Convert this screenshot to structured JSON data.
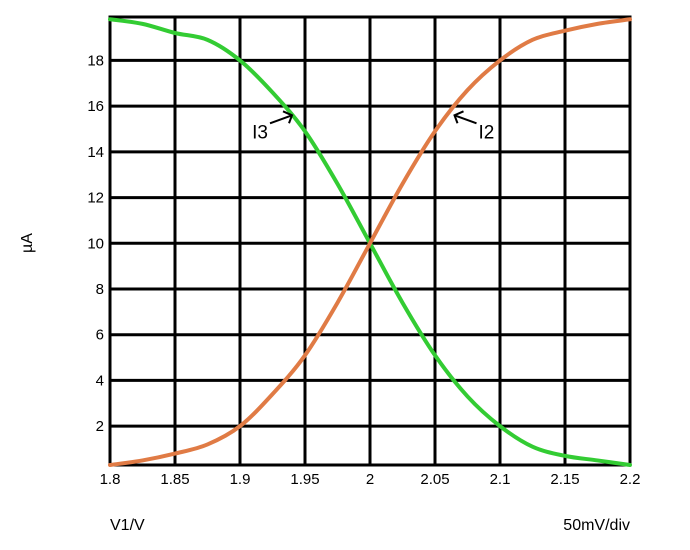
{
  "chart_data": {
    "type": "line",
    "xlabel": "V1/V",
    "ylabel": "µA",
    "scale_note": "50mV/div",
    "xlim": [
      1.8,
      2.2
    ],
    "ylim": [
      0.3,
      19.9
    ],
    "x_ticks": [
      "1.8",
      "1.85",
      "1.9",
      "1.95",
      "2",
      "2.05",
      "2.1",
      "2.15",
      "2.2"
    ],
    "y_ticks": [
      "2",
      "4",
      "6",
      "8",
      "10",
      "12",
      "14",
      "16",
      "18"
    ],
    "grid": true,
    "legend": "none",
    "series": [
      {
        "name": "I3",
        "color": "#33cc33",
        "x": [
          1.8,
          1.825,
          1.85,
          1.875,
          1.9,
          1.925,
          1.95,
          1.975,
          2.0,
          2.025,
          2.05,
          2.075,
          2.1,
          2.125,
          2.15,
          2.175,
          2.2
        ],
        "y": [
          19.8,
          19.6,
          19.2,
          18.9,
          18.0,
          16.6,
          14.9,
          12.6,
          10.0,
          7.4,
          5.1,
          3.3,
          2.0,
          1.1,
          0.7,
          0.5,
          0.3
        ]
      },
      {
        "name": "I2",
        "color": "#e07b45",
        "x": [
          1.8,
          1.825,
          1.85,
          1.875,
          1.9,
          1.925,
          1.95,
          1.975,
          2.0,
          2.025,
          2.05,
          2.075,
          2.1,
          2.125,
          2.15,
          2.175,
          2.2
        ],
        "y": [
          0.3,
          0.5,
          0.8,
          1.2,
          2.0,
          3.4,
          5.1,
          7.4,
          10.0,
          12.6,
          14.9,
          16.7,
          18.0,
          18.9,
          19.3,
          19.6,
          19.8
        ]
      }
    ],
    "annotations": [
      {
        "text": "I3",
        "series": "I3",
        "x": 1.94,
        "y": 15.6
      },
      {
        "text": "I2",
        "series": "I2",
        "x": 2.065,
        "y": 15.6
      }
    ]
  }
}
